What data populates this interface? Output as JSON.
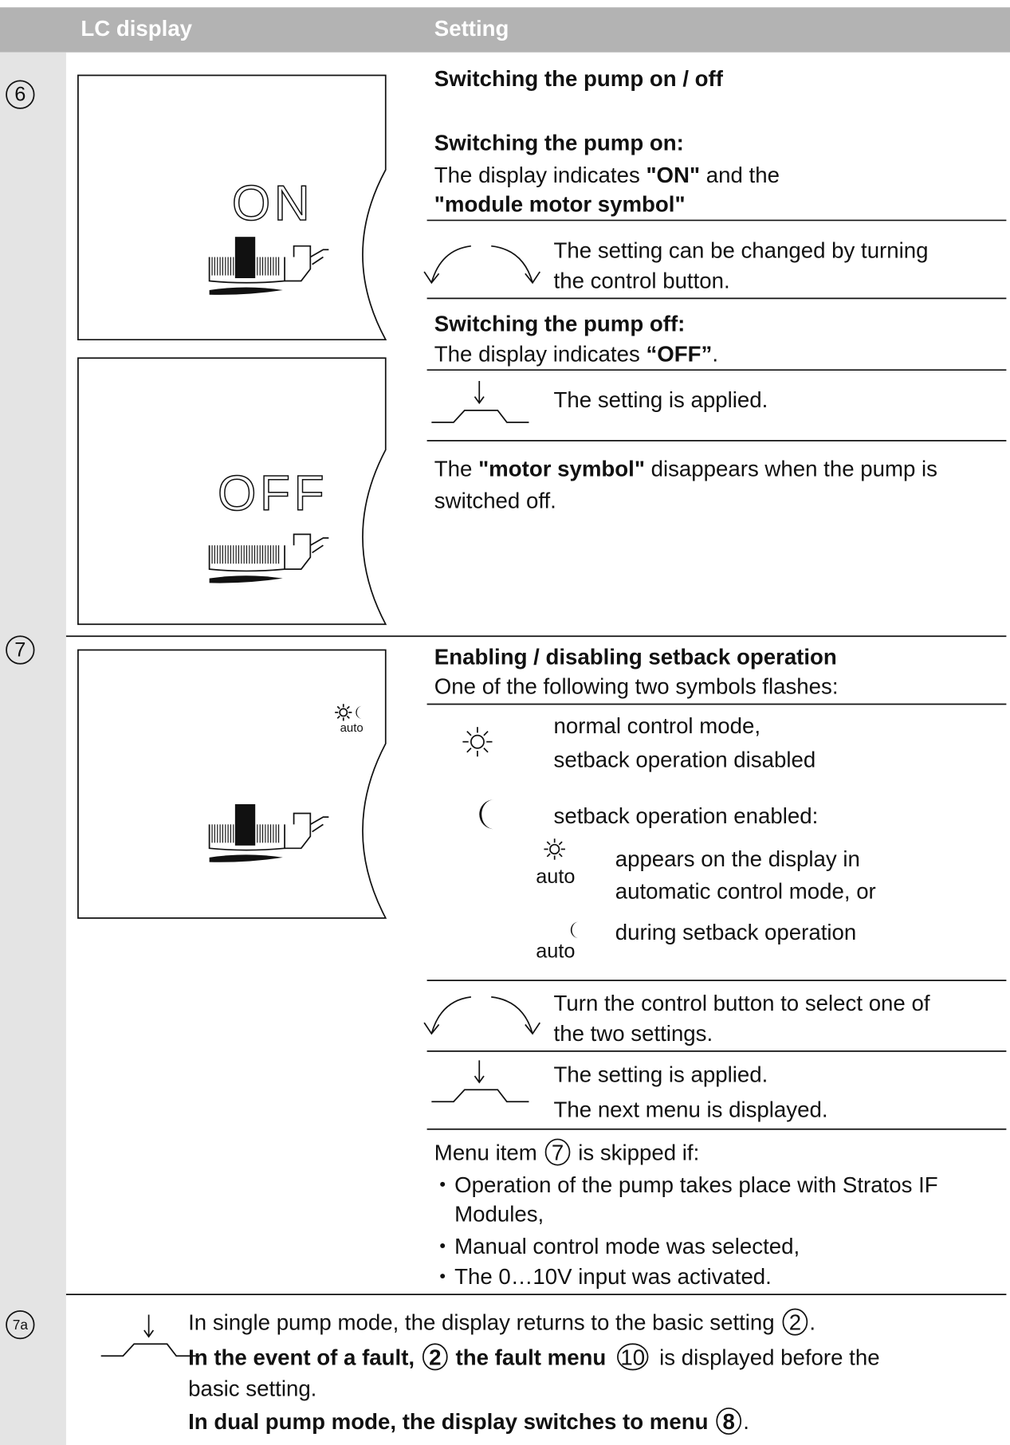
{
  "header": {
    "lc_display": "LC display",
    "setting": "Setting"
  },
  "rows": [
    {
      "number": "6",
      "lcd": [
        "ON",
        "OFF"
      ],
      "lines": [
        [
          {
            "text": "Switching the pump on / off",
            "bold": true
          }
        ],
        [
          {
            "text": "Switching the pump on:",
            "bold": true
          }
        ],
        [
          {
            "text": "The display indicates "
          },
          {
            "text": "\"ON\"",
            "bold": true
          },
          {
            "text": " and the"
          }
        ],
        [
          {
            "text": "\"module motor symbol\"",
            "bold": true
          }
        ],
        [
          {
            "text": "The setting can be changed by turning"
          }
        ],
        [
          {
            "text": "the control button."
          }
        ],
        [
          {
            "text": "Switching the pump off:",
            "bold": true
          }
        ],
        [
          {
            "text": "The display indicates "
          },
          {
            "text": "“OFF”",
            "bold": true
          },
          {
            "text": "."
          }
        ],
        [
          {
            "text": "The setting is applied."
          }
        ],
        [
          {
            "text": "The "
          },
          {
            "text": "\"motor symbol\"",
            "bold": true
          },
          {
            "text": " disappears when the pump is"
          }
        ],
        [
          {
            "text": "switched off."
          }
        ]
      ]
    },
    {
      "number": "7",
      "lcd": [
        "auto"
      ],
      "symbol_labels": [
        "auto",
        "auto"
      ],
      "lines": [
        [
          {
            "text": "Enabling / disabling setback operation",
            "bold": true
          }
        ],
        [
          {
            "text": "One of the following two symbols flashes:"
          }
        ],
        [
          {
            "text": "normal control mode,"
          }
        ],
        [
          {
            "text": "setback operation disabled"
          }
        ],
        [
          {
            "text": "setback operation enabled:"
          }
        ],
        [
          {
            "text": "appears on the display in"
          }
        ],
        [
          {
            "text": "automatic control mode, or"
          }
        ],
        [
          {
            "text": "during setback operation"
          }
        ],
        [
          {
            "text": "Turn the control button to select one of"
          }
        ],
        [
          {
            "text": "the two settings."
          }
        ],
        [
          {
            "text": "The setting is applied."
          }
        ],
        [
          {
            "text": "The next menu is displayed."
          }
        ],
        [
          {
            "text": "Menu item "
          },
          {
            "circled": "7"
          },
          {
            "text": " is skipped if:"
          }
        ],
        [
          {
            "text": "Operation of the pump takes place with Stratos IF"
          }
        ],
        [
          {
            "text": "Modules,"
          }
        ],
        [
          {
            "text": "Manual control mode was selected,"
          }
        ],
        [
          {
            "text": "The 0…10V input was activated."
          }
        ]
      ]
    },
    {
      "number": "7a",
      "lines": [
        [
          {
            "text": "In single pump mode, the display returns to the basic setting "
          },
          {
            "circled": "2"
          },
          {
            "text": "."
          }
        ],
        [
          {
            "text": "In the event of a fault, ",
            "bold": true
          },
          {
            "circled": "2",
            "bold": true
          },
          {
            "text": " the fault menu ",
            "bold": true
          },
          {
            "circled": "10"
          },
          {
            "text": " is displayed before the"
          }
        ],
        [
          {
            "text": "basic setting."
          }
        ],
        [
          {
            "text": "In dual pump mode, the display switches to menu ",
            "bold": true
          },
          {
            "circled": "8",
            "bold": true
          },
          {
            "text": "."
          }
        ]
      ]
    }
  ]
}
